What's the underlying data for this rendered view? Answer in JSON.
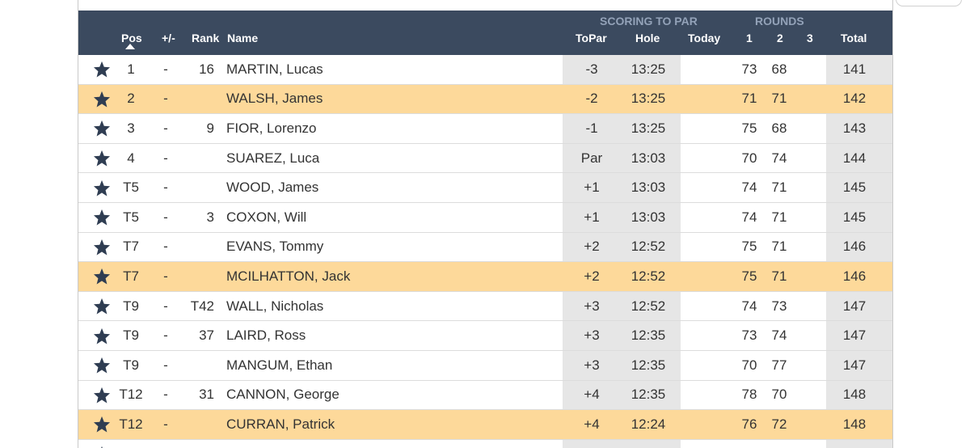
{
  "header": {
    "group_scoring": "SCORING TO PAR",
    "group_rounds": "ROUNDS",
    "col_pos": "Pos",
    "col_move": "+/-",
    "col_rank": "Rank",
    "col_name": "Name",
    "col_topar": "ToPar",
    "col_hole": "Hole",
    "col_today": "Today",
    "col_r1": "1",
    "col_r2": "2",
    "col_r3": "3",
    "col_total": "Total"
  },
  "colors": {
    "header_bg": "#3b4a5f",
    "highlight_row": "#fdd99a",
    "shaded_col": "#e6e6e6",
    "star": "#2f3d52"
  },
  "rows": [
    {
      "pos": "1",
      "move": "-",
      "rank": "16",
      "name": "MARTIN, Lucas",
      "topar": "-3",
      "hole": "13:25",
      "today": "",
      "r1": "73",
      "r2": "68",
      "r3": "",
      "total": "141",
      "highlight": false
    },
    {
      "pos": "2",
      "move": "-",
      "rank": "",
      "name": "WALSH, James",
      "topar": "-2",
      "hole": "13:25",
      "today": "",
      "r1": "71",
      "r2": "71",
      "r3": "",
      "total": "142",
      "highlight": true
    },
    {
      "pos": "3",
      "move": "-",
      "rank": "9",
      "name": "FIOR, Lorenzo",
      "topar": "-1",
      "hole": "13:25",
      "today": "",
      "r1": "75",
      "r2": "68",
      "r3": "",
      "total": "143",
      "highlight": false
    },
    {
      "pos": "4",
      "move": "-",
      "rank": "",
      "name": "SUAREZ, Luca",
      "topar": "Par",
      "hole": "13:03",
      "today": "",
      "r1": "70",
      "r2": "74",
      "r3": "",
      "total": "144",
      "highlight": false
    },
    {
      "pos": "T5",
      "move": "-",
      "rank": "",
      "name": "WOOD, James",
      "topar": "+1",
      "hole": "13:03",
      "today": "",
      "r1": "74",
      "r2": "71",
      "r3": "",
      "total": "145",
      "highlight": false
    },
    {
      "pos": "T5",
      "move": "-",
      "rank": "3",
      "name": "COXON, Will",
      "topar": "+1",
      "hole": "13:03",
      "today": "",
      "r1": "74",
      "r2": "71",
      "r3": "",
      "total": "145",
      "highlight": false
    },
    {
      "pos": "T7",
      "move": "-",
      "rank": "",
      "name": "EVANS, Tommy",
      "topar": "+2",
      "hole": "12:52",
      "today": "",
      "r1": "75",
      "r2": "71",
      "r3": "",
      "total": "146",
      "highlight": false
    },
    {
      "pos": "T7",
      "move": "-",
      "rank": "",
      "name": "MCILHATTON, Jack",
      "topar": "+2",
      "hole": "12:52",
      "today": "",
      "r1": "75",
      "r2": "71",
      "r3": "",
      "total": "146",
      "highlight": true
    },
    {
      "pos": "T9",
      "move": "-",
      "rank": "T42",
      "name": "WALL, Nicholas",
      "topar": "+3",
      "hole": "12:52",
      "today": "",
      "r1": "74",
      "r2": "73",
      "r3": "",
      "total": "147",
      "highlight": false
    },
    {
      "pos": "T9",
      "move": "-",
      "rank": "37",
      "name": "LAIRD, Ross",
      "topar": "+3",
      "hole": "12:35",
      "today": "",
      "r1": "73",
      "r2": "74",
      "r3": "",
      "total": "147",
      "highlight": false
    },
    {
      "pos": "T9",
      "move": "-",
      "rank": "",
      "name": "MANGUM, Ethan",
      "topar": "+3",
      "hole": "12:35",
      "today": "",
      "r1": "70",
      "r2": "77",
      "r3": "",
      "total": "147",
      "highlight": false
    },
    {
      "pos": "T12",
      "move": "-",
      "rank": "31",
      "name": "CANNON, George",
      "topar": "+4",
      "hole": "12:35",
      "today": "",
      "r1": "78",
      "r2": "70",
      "r3": "",
      "total": "148",
      "highlight": false
    },
    {
      "pos": "T12",
      "move": "-",
      "rank": "",
      "name": "CURRAN, Patrick",
      "topar": "+4",
      "hole": "12:24",
      "today": "",
      "r1": "76",
      "r2": "72",
      "r3": "",
      "total": "148",
      "highlight": true
    },
    {
      "pos": "",
      "move": "",
      "rank": "",
      "name": "",
      "topar": "",
      "hole": "",
      "today": "",
      "r1": "",
      "r2": "",
      "r3": "",
      "total": "",
      "highlight": false
    }
  ]
}
